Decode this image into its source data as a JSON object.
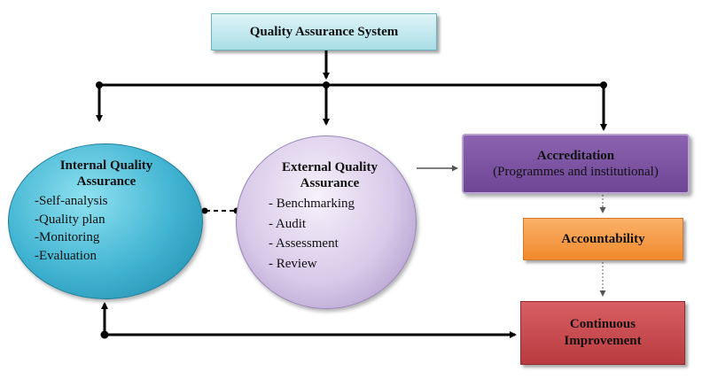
{
  "top": {
    "label": "Quality Assurance System"
  },
  "internal": {
    "title_line1": "Internal Quality",
    "title_line2": "Assurance",
    "items": [
      "-Self-analysis",
      "-Quality plan",
      "-Monitoring",
      "-Evaluation"
    ]
  },
  "external": {
    "title_line1": "External Quality",
    "title_line2": "Assurance",
    "items": [
      "- Benchmarking",
      "- Audit",
      "- Assessment",
      "- Review"
    ]
  },
  "accreditation": {
    "title": "Accreditation",
    "subtitle": "(Programmes and institutional)"
  },
  "accountability": {
    "label": "Accountability"
  },
  "continuous": {
    "line1": "Continuous",
    "line2": "Improvement"
  },
  "colors": {
    "top_box": "#a9dde6",
    "internal": "#3fb3d1",
    "external": "#d7c9e8",
    "accreditation": "#7a52a2",
    "accountability": "#f39a40",
    "continuous": "#c5484c"
  }
}
